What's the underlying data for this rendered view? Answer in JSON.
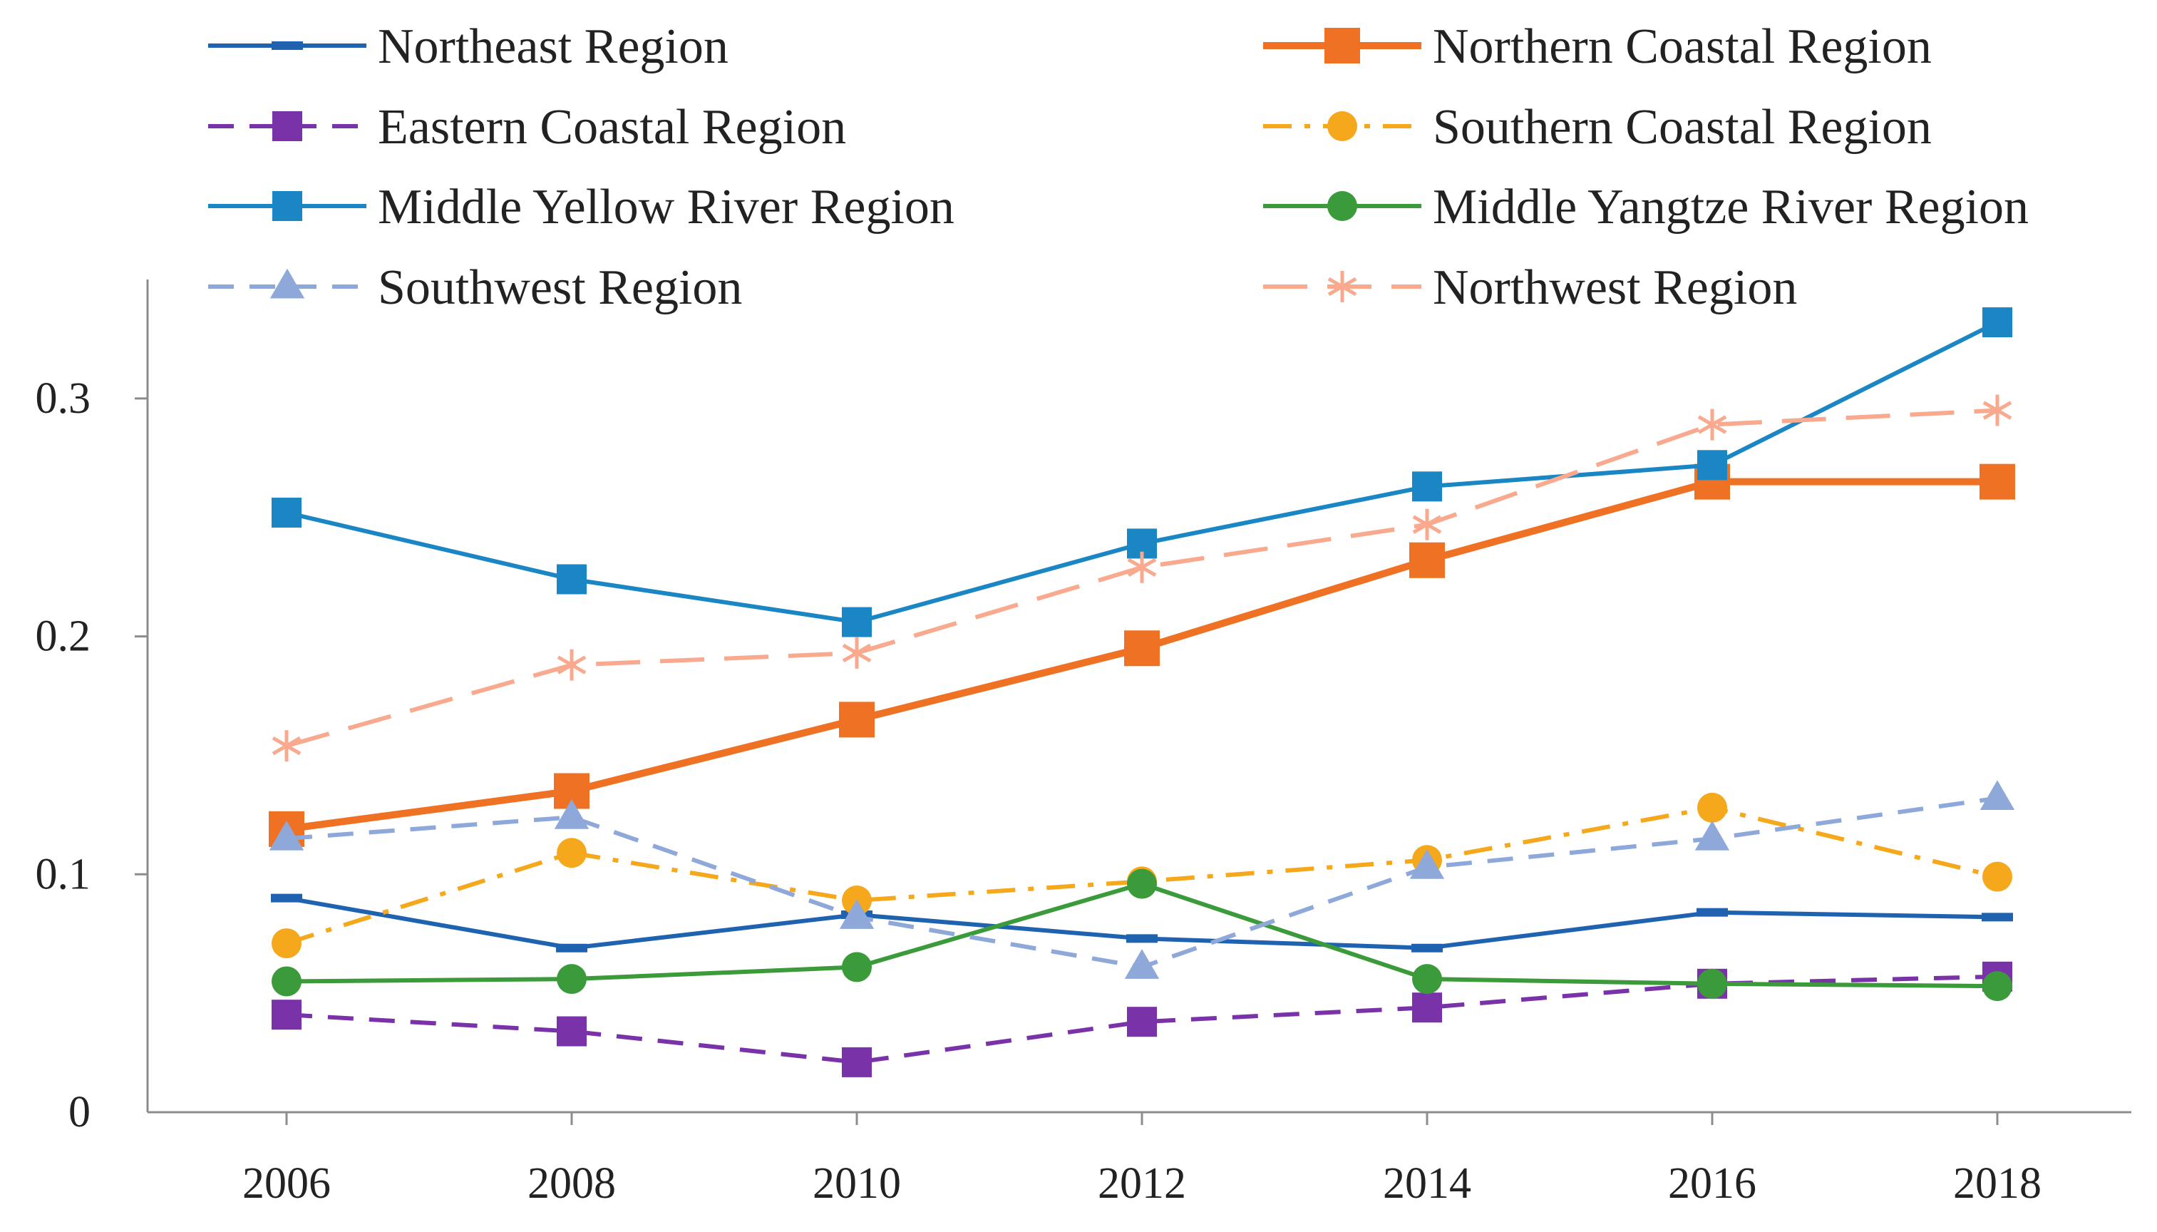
{
  "chart_data": {
    "type": "line",
    "title": "",
    "xlabel": "",
    "ylabel": "",
    "x": [
      "2006",
      "2008",
      "2010",
      "2012",
      "2014",
      "2016",
      "2018"
    ],
    "ylim": [
      0,
      0.35
    ],
    "yticks": [
      {
        "value": 0,
        "label": "0"
      },
      {
        "value": 0.1,
        "label": "0.1"
      },
      {
        "value": 0.2,
        "label": "0.2"
      },
      {
        "value": 0.3,
        "label": "0.3"
      }
    ],
    "grid": false,
    "legend_position": "top",
    "series": [
      {
        "name": "Northeast Region",
        "color": "#1f63b0",
        "dash": "solid",
        "marker": "dash",
        "values": [
          0.09,
          0.069,
          0.083,
          0.073,
          0.069,
          0.084,
          0.082
        ]
      },
      {
        "name": "Northern Coastal Region",
        "color": "#ee7124",
        "dash": "solid",
        "marker": "square",
        "values": [
          0.119,
          0.135,
          0.165,
          0.195,
          0.232,
          0.265,
          0.265
        ]
      },
      {
        "name": "Eastern Coastal Region",
        "color": "#7a32a8",
        "dash": "dash",
        "marker": "square",
        "values": [
          0.041,
          0.034,
          0.021,
          0.038,
          0.044,
          0.054,
          0.057
        ]
      },
      {
        "name": "Southern Coastal Region",
        "color": "#f5a81c",
        "dash": "dashdot",
        "marker": "circle",
        "values": [
          0.071,
          0.109,
          0.089,
          0.097,
          0.106,
          0.128,
          0.099
        ]
      },
      {
        "name": "Middle Yellow River Region",
        "color": "#1a86c4",
        "dash": "solid",
        "marker": "square",
        "values": [
          0.252,
          0.224,
          0.206,
          0.239,
          0.263,
          0.272,
          0.332
        ]
      },
      {
        "name": "Middle Yangtze River Region",
        "color": "#3b9b3a",
        "dash": "solid",
        "marker": "circle",
        "values": [
          0.055,
          0.056,
          0.061,
          0.096,
          0.056,
          0.054,
          0.053
        ]
      },
      {
        "name": "Southwest Region",
        "color": "#8fa8da",
        "dash": "dash",
        "marker": "triangle",
        "values": [
          0.115,
          0.124,
          0.082,
          0.061,
          0.103,
          0.115,
          0.132
        ]
      },
      {
        "name": "Northwest Region",
        "color": "#f8a98e",
        "dash": "longdash",
        "marker": "asterisk",
        "values": [
          0.154,
          0.188,
          0.193,
          0.229,
          0.247,
          0.289,
          0.295
        ]
      }
    ]
  }
}
